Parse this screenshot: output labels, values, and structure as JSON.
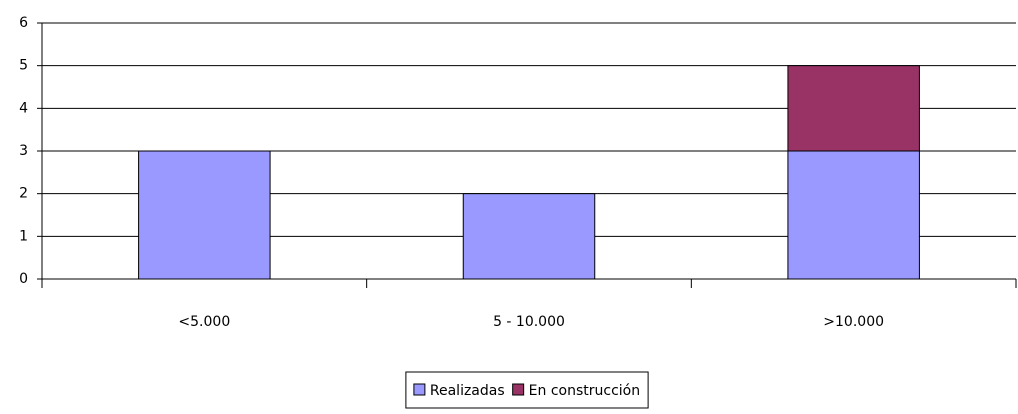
{
  "chart_data": {
    "type": "bar",
    "stacked": true,
    "categories": [
      "<5.000",
      "5 - 10.000",
      ">10.000"
    ],
    "series": [
      {
        "name": "Realizadas",
        "color": "#9999ff",
        "values": [
          3,
          2,
          3
        ]
      },
      {
        "name": "En construcción",
        "color": "#993366",
        "values": [
          0,
          0,
          2
        ]
      }
    ],
    "ylim": [
      0,
      6
    ],
    "yticks": [
      0,
      1,
      2,
      3,
      4,
      5,
      6
    ],
    "grid": true,
    "legend": "bottom"
  }
}
